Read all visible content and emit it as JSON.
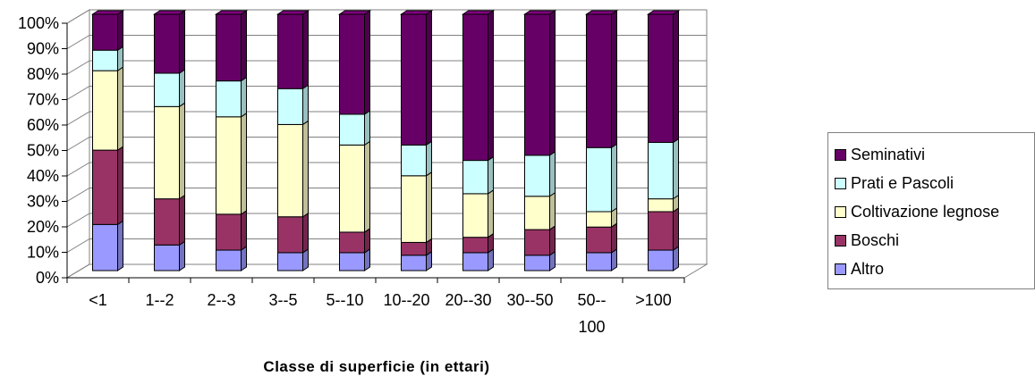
{
  "chart_data": {
    "type": "bar",
    "stacked": true,
    "percent": true,
    "three_d": true,
    "xlabel": "Classe di superficie (in ettari)",
    "ylabel": "",
    "ylim": [
      0,
      100
    ],
    "yticks": [
      "0%",
      "10%",
      "20%",
      "30%",
      "40%",
      "50%",
      "60%",
      "70%",
      "80%",
      "90%",
      "100%"
    ],
    "categories": [
      "<1",
      "1--2",
      "2--3",
      "3--5",
      "5--10",
      "10--20",
      "20--30",
      "30--50",
      "50--100",
      ">100"
    ],
    "category_lines": [
      [
        "<1"
      ],
      [
        "1--2"
      ],
      [
        "2--3"
      ],
      [
        "3--5"
      ],
      [
        "5--10"
      ],
      [
        "10--20"
      ],
      [
        "20--30"
      ],
      [
        "30--50"
      ],
      [
        "50--",
        "100"
      ],
      [
        ">100"
      ]
    ],
    "legend_position": "right",
    "series": [
      {
        "name": "Altro",
        "color": "#9999ff",
        "values": [
          18,
          10,
          8,
          7,
          7,
          6,
          7,
          6,
          7,
          8
        ]
      },
      {
        "name": "Boschi",
        "color": "#993366",
        "values": [
          29,
          18,
          14,
          14,
          8,
          5,
          6,
          10,
          10,
          15
        ]
      },
      {
        "name": "Coltivazione legnose",
        "color": "#ffffcc",
        "values": [
          31,
          36,
          38,
          36,
          34,
          26,
          17,
          13,
          6,
          5
        ]
      },
      {
        "name": "Prati e Pascoli",
        "color": "#ccffff",
        "values": [
          8,
          13,
          14,
          14,
          12,
          12,
          13,
          16,
          25,
          22
        ]
      },
      {
        "name": "Seminativi",
        "color": "#660066",
        "values": [
          14,
          23,
          26,
          29,
          39,
          51,
          57,
          55,
          52,
          50
        ]
      }
    ],
    "legend_order": [
      "Seminativi",
      "Prati e Pascoli",
      "Coltivazione legnose",
      "Boschi",
      "Altro"
    ]
  }
}
